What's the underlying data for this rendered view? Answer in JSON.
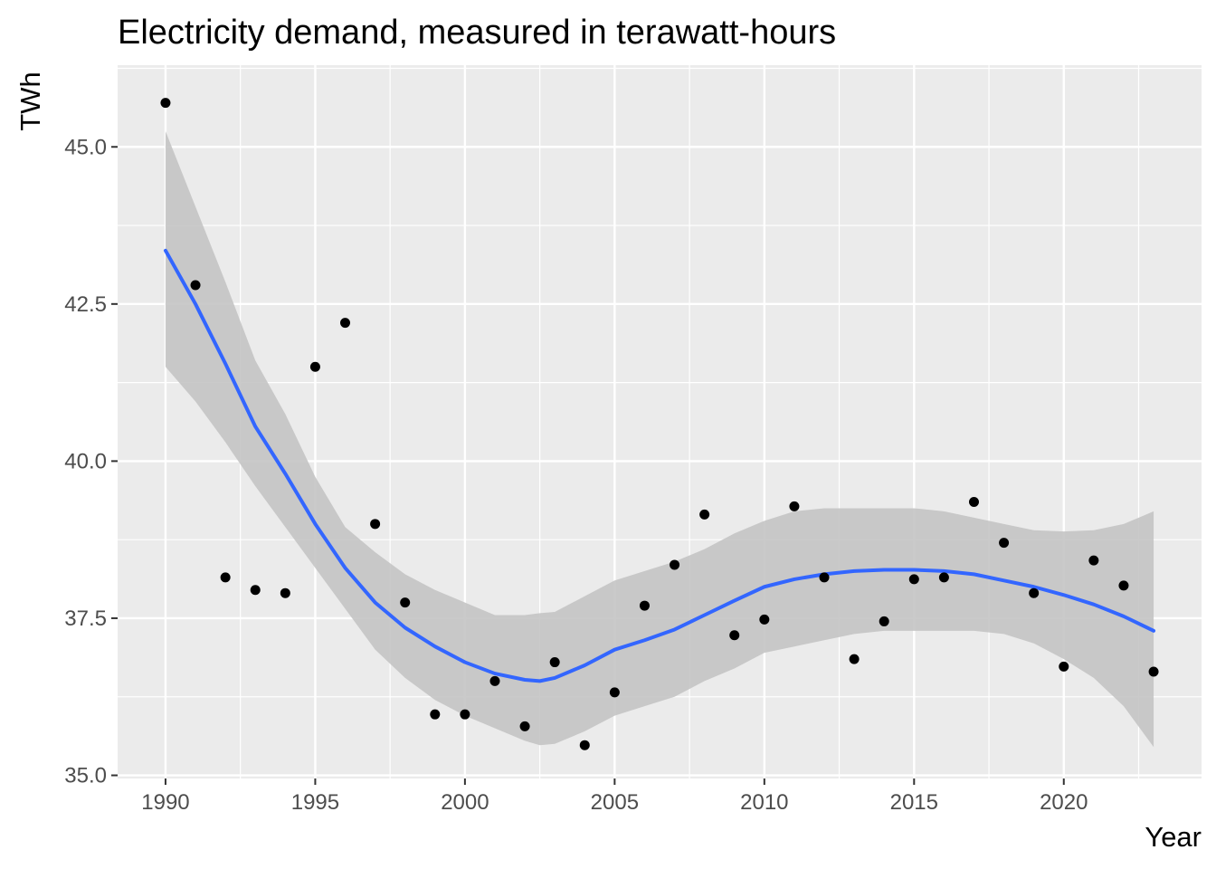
{
  "chart_data": {
    "type": "scatter",
    "title": "Electricity demand, measured in terawatt-hours",
    "xlabel": "Year",
    "ylabel": "TWh",
    "xlim": [
      1988.4,
      2024.6
    ],
    "ylim": [
      34.95,
      46.3
    ],
    "x_ticks": [
      1990,
      1995,
      2000,
      2005,
      2010,
      2015,
      2020
    ],
    "x_tick_labels": [
      "1990",
      "1995",
      "2000",
      "2005",
      "2010",
      "2015",
      "2020"
    ],
    "y_ticks": [
      35.0,
      37.5,
      40.0,
      42.5,
      45.0
    ],
    "y_tick_labels": [
      "35.0",
      "37.5",
      "40.0",
      "42.5",
      "45.0"
    ],
    "grid": true,
    "colors": {
      "panel": "#ebebeb",
      "grid": "#ffffff",
      "points": "#000000",
      "smooth_line": "#3366ff",
      "ribbon": "#c4c4c4"
    },
    "points": {
      "x": [
        1990,
        1991,
        1992,
        1993,
        1994,
        1995,
        1996,
        1997,
        1998,
        1999,
        2000,
        2001,
        2002,
        2003,
        2004,
        2005,
        2006,
        2007,
        2008,
        2009,
        2010,
        2011,
        2012,
        2013,
        2014,
        2015,
        2016,
        2017,
        2018,
        2019,
        2020,
        2021,
        2022,
        2023
      ],
      "y": [
        45.7,
        42.8,
        38.15,
        37.95,
        37.9,
        41.5,
        42.2,
        39.0,
        37.75,
        35.97,
        35.97,
        36.5,
        35.78,
        36.8,
        35.48,
        36.32,
        37.7,
        38.35,
        39.15,
        37.23,
        37.48,
        39.28,
        38.15,
        36.85,
        37.45,
        38.12,
        38.15,
        39.35,
        38.7,
        37.9,
        36.73,
        38.42,
        38.02,
        36.65
      ]
    },
    "smooth": {
      "x": [
        1990,
        1991,
        1992,
        1993,
        1994,
        1995,
        1996,
        1997,
        1998,
        1999,
        2000,
        2001,
        2002,
        2002.5,
        2003,
        2004,
        2005,
        2006,
        2007,
        2008,
        2009,
        2010,
        2011,
        2012,
        2013,
        2014,
        2015,
        2016,
        2017,
        2018,
        2019,
        2020,
        2021,
        2022,
        2023
      ],
      "fit": [
        43.35,
        42.5,
        41.55,
        40.55,
        39.8,
        39.0,
        38.3,
        37.75,
        37.35,
        37.05,
        36.8,
        36.62,
        36.52,
        36.5,
        36.55,
        36.75,
        37.0,
        37.15,
        37.32,
        37.55,
        37.78,
        38.0,
        38.12,
        38.2,
        38.25,
        38.27,
        38.27,
        38.25,
        38.2,
        38.1,
        38.0,
        37.87,
        37.72,
        37.53,
        37.3
      ],
      "lower": [
        41.5,
        40.95,
        40.3,
        39.6,
        38.95,
        38.3,
        37.65,
        37.0,
        36.55,
        36.2,
        35.95,
        35.75,
        35.55,
        35.48,
        35.5,
        35.7,
        35.95,
        36.1,
        36.25,
        36.5,
        36.7,
        36.95,
        37.05,
        37.15,
        37.25,
        37.3,
        37.3,
        37.3,
        37.3,
        37.25,
        37.1,
        36.85,
        36.55,
        36.1,
        35.45
      ],
      "upper": [
        45.25,
        44.05,
        42.85,
        41.6,
        40.75,
        39.75,
        38.95,
        38.55,
        38.2,
        37.95,
        37.75,
        37.55,
        37.55,
        37.58,
        37.6,
        37.85,
        38.1,
        38.25,
        38.4,
        38.6,
        38.85,
        39.05,
        39.2,
        39.25,
        39.25,
        39.25,
        39.25,
        39.2,
        39.1,
        39.0,
        38.9,
        38.88,
        38.9,
        39.0,
        39.2
      ]
    }
  }
}
